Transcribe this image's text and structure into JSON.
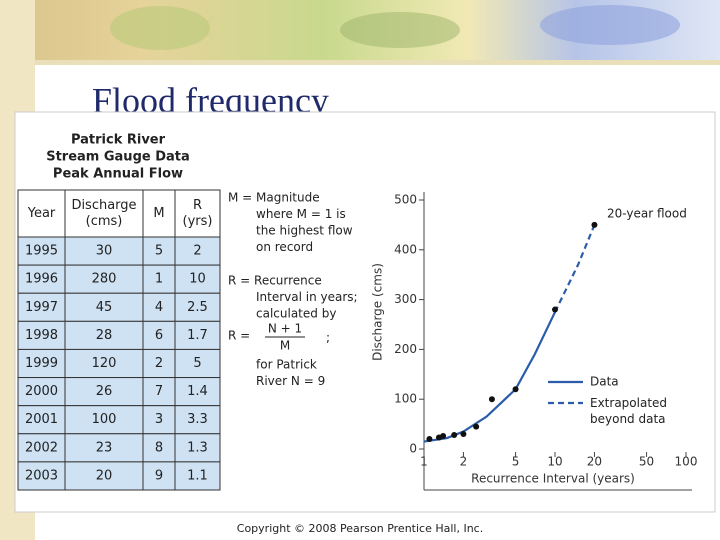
{
  "slide": {
    "title": "Flood frequency",
    "copyright": "Copyright © 2008 Pearson Prentice Hall, Inc."
  },
  "table": {
    "title": [
      "Patrick River",
      "Stream Gauge Data",
      "Peak Annual Flow"
    ],
    "header": [
      [
        "Year"
      ],
      [
        "Discharge",
        "(cms)"
      ],
      [
        "M"
      ],
      [
        "R",
        "(yrs)"
      ]
    ],
    "rows": [
      [
        1995,
        30,
        5,
        2
      ],
      [
        1996,
        280,
        1,
        10
      ],
      [
        1997,
        45,
        4,
        2.5
      ],
      [
        1998,
        28,
        6,
        1.7
      ],
      [
        1999,
        120,
        2,
        5
      ],
      [
        2000,
        26,
        7,
        1.4
      ],
      [
        2001,
        100,
        3,
        3.3
      ],
      [
        2002,
        23,
        8,
        1.3
      ],
      [
        2003,
        20,
        9,
        1.1
      ]
    ]
  },
  "notes": {
    "magnitude": [
      "M = Magnitude",
      "where M = 1 is",
      "the highest flow",
      "on record"
    ],
    "recurrence": [
      "R = Recurrence",
      "Interval in years;",
      "calculated by"
    ],
    "formula": {
      "lhs": "R =",
      "numerator": "N + 1",
      "denominator": "M",
      "end": ";"
    },
    "river": [
      "for Patrick",
      "River N = 9"
    ]
  },
  "chart_data": {
    "type": "line",
    "xlabel": "Recurrence Interval (years)",
    "ylabel": "Discharge (cms)",
    "xscale": "log",
    "xlim": [
      1,
      100
    ],
    "xticks": [
      1,
      2,
      5,
      10,
      20,
      50,
      100
    ],
    "ylim": [
      0,
      500
    ],
    "yticks": [
      0,
      100,
      200,
      300,
      400,
      500
    ],
    "series": [
      {
        "name": "Data",
        "color": "#2a5caa",
        "dashed": false,
        "x": [
          1,
          1.5,
          2,
          3,
          5,
          7,
          10
        ],
        "values": [
          15,
          22,
          35,
          65,
          120,
          190,
          275
        ]
      },
      {
        "name": "Extrapolated beyond data",
        "color": "#2a5caa",
        "dashed": true,
        "x": [
          10,
          15,
          20
        ],
        "values": [
          275,
          370,
          450
        ]
      }
    ],
    "annotation": "20-year flood",
    "marker_color": "#111"
  }
}
